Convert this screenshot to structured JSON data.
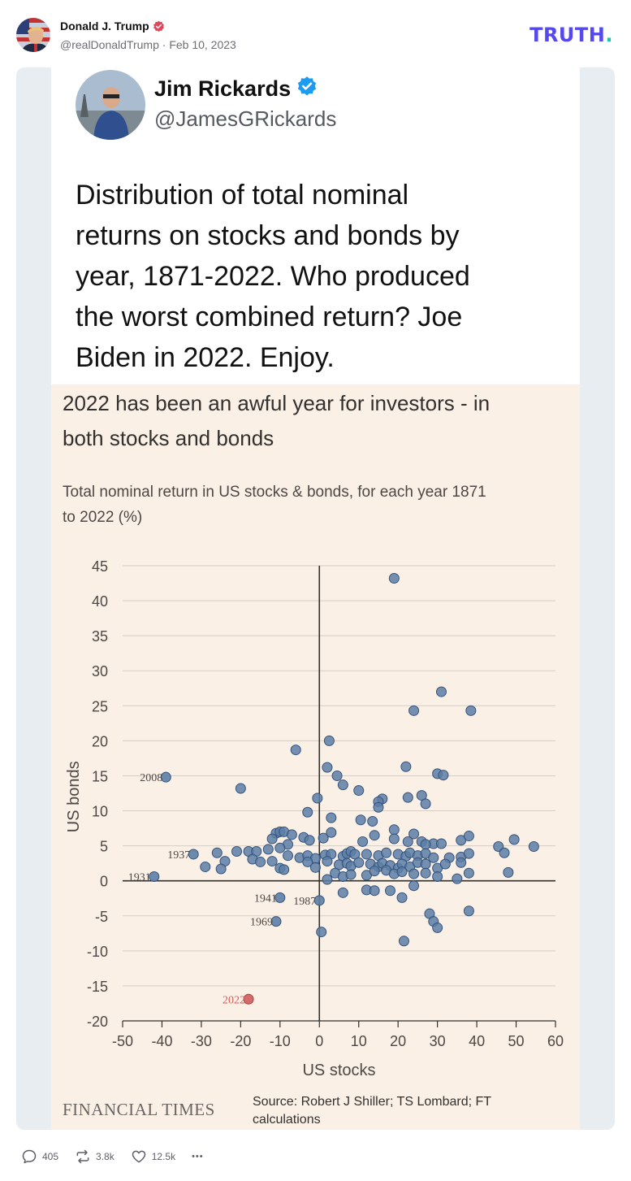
{
  "post": {
    "author_name": "Donald J. Trump",
    "handle": "@realDonaldTrump",
    "separator": "·",
    "date": "Feb 10, 2023",
    "logo": "TRUTH",
    "logo_dot": ".",
    "colors": {
      "logo": "#5448ee",
      "logo_dot": "#15c9a8",
      "verified": "#e3465a"
    }
  },
  "tweet": {
    "name": "Jim Rickards",
    "handle": "@JamesGRickards",
    "text_lines": [
      "Distribution of total nominal",
      "returns on stocks and bonds by",
      "year, 1871-2022. Who produced",
      "the worst combined return? Joe",
      "Biden in 2022. Enjoy."
    ],
    "colors": {
      "verified": "#1d9bf0"
    }
  },
  "ft": {
    "headline_lines": [
      "2022 has been an awful year for investors - in",
      "both stocks and bonds"
    ],
    "subtitle_lines": [
      "Total nominal return in US stocks & bonds, for each year 1871",
      "to 2022 (%)"
    ],
    "logo": "FINANCIAL TIMES",
    "source_lines": [
      "Source: Robert J Shiller; TS Lombard; FT",
      "calculations"
    ]
  },
  "actions": {
    "replies": "405",
    "retruths": "3.8k",
    "likes": "12.5k",
    "more": "•••"
  },
  "chart_data": {
    "type": "scatter",
    "title": "Total nominal return in US stocks & bonds, for each year 1871 to 2022 (%)",
    "xlabel": "US stocks",
    "ylabel": "US bonds",
    "xlim": [
      -50,
      60
    ],
    "ylim": [
      -20,
      45
    ],
    "xticks": [
      -50,
      -40,
      -30,
      -20,
      -10,
      0,
      10,
      20,
      30,
      40,
      50,
      60
    ],
    "yticks": [
      -20,
      -15,
      -10,
      -5,
      0,
      5,
      10,
      15,
      20,
      25,
      30,
      35,
      40,
      45
    ],
    "grid": "horizontal",
    "colors": {
      "point": "#5c7ea6",
      "point_edge": "#34537c",
      "highlight": "#cf5c5c",
      "zero_line": "#33302e"
    },
    "labeled_points": [
      {
        "label": "2008",
        "x": -39,
        "y": 14.8
      },
      {
        "label": "1937",
        "x": -32,
        "y": 3.8
      },
      {
        "label": "1931",
        "x": -42,
        "y": 0.6
      },
      {
        "label": "1941",
        "x": -10,
        "y": -2.4
      },
      {
        "label": "1987",
        "x": 0,
        "y": -2.8
      },
      {
        "label": "1969",
        "x": -11,
        "y": -5.8
      },
      {
        "label": "2022",
        "x": -18,
        "y": -16.9,
        "highlight": true
      }
    ],
    "points": [
      [
        19,
        43.2
      ],
      [
        31,
        27
      ],
      [
        24,
        24.3
      ],
      [
        38.5,
        24.3
      ],
      [
        2.5,
        20
      ],
      [
        -6,
        18.7
      ],
      [
        22,
        16.3
      ],
      [
        2,
        16.2
      ],
      [
        30,
        15.3
      ],
      [
        31.5,
        15.1
      ],
      [
        4.5,
        15
      ],
      [
        -20,
        13.2
      ],
      [
        6,
        13.7
      ],
      [
        10,
        12.9
      ],
      [
        26,
        12.2
      ],
      [
        16,
        11.7
      ],
      [
        15,
        11.3
      ],
      [
        22.5,
        11.9
      ],
      [
        -0.5,
        11.8
      ],
      [
        27,
        11
      ],
      [
        15,
        10.5
      ],
      [
        -3,
        9.8
      ],
      [
        3,
        9
      ],
      [
        10.5,
        8.7
      ],
      [
        13.5,
        8.5
      ],
      [
        19,
        7.3
      ],
      [
        24,
        6.7
      ],
      [
        3,
        6.9
      ],
      [
        14,
        6.5
      ],
      [
        -11,
        6.8
      ],
      [
        -10,
        7
      ],
      [
        -9,
        7
      ],
      [
        -7,
        6.6
      ],
      [
        -4,
        6.2
      ],
      [
        -12,
        6
      ],
      [
        1,
        6.1
      ],
      [
        -2.5,
        5.8
      ],
      [
        11,
        5.6
      ],
      [
        19,
        6
      ],
      [
        29,
        5.3
      ],
      [
        36,
        5.8
      ],
      [
        38,
        6.4
      ],
      [
        49.5,
        5.9
      ],
      [
        22.5,
        5.6
      ],
      [
        26,
        5.6
      ],
      [
        27,
        5.2
      ],
      [
        31,
        5.3
      ],
      [
        45.5,
        4.9
      ],
      [
        -8,
        5.2
      ],
      [
        -10,
        4.7
      ],
      [
        -13,
        4.5
      ],
      [
        -18,
        4.2
      ],
      [
        -16,
        4.2
      ],
      [
        -26,
        4
      ],
      [
        -21,
        4.2
      ],
      [
        -8,
        3.6
      ],
      [
        -5,
        3.3
      ],
      [
        -3,
        3.6
      ],
      [
        -1,
        3.2
      ],
      [
        1.5,
        3.7
      ],
      [
        3,
        3.8
      ],
      [
        6,
        3.5
      ],
      [
        7,
        3.9
      ],
      [
        8,
        4.2
      ],
      [
        9,
        3.8
      ],
      [
        12,
        3.8
      ],
      [
        15,
        3.6
      ],
      [
        17,
        4
      ],
      [
        20,
        3.8
      ],
      [
        22,
        3.5
      ],
      [
        23,
        4
      ],
      [
        25,
        3.6
      ],
      [
        27,
        3.9
      ],
      [
        29,
        3.3
      ],
      [
        33,
        3.3
      ],
      [
        36,
        3.4
      ],
      [
        38,
        3.9
      ],
      [
        47,
        4
      ],
      [
        54.5,
        4.9
      ],
      [
        -24,
        2.8
      ],
      [
        -17,
        3.1
      ],
      [
        -15,
        2.7
      ],
      [
        -12,
        2.8
      ],
      [
        -3,
        2.7
      ],
      [
        2,
        2.8
      ],
      [
        5,
        2.3
      ],
      [
        7,
        2.5
      ],
      [
        8,
        2.1
      ],
      [
        10,
        2.6
      ],
      [
        13,
        2.4
      ],
      [
        15,
        2
      ],
      [
        16,
        2.5
      ],
      [
        18,
        2.2
      ],
      [
        20,
        1.8
      ],
      [
        21,
        2.4
      ],
      [
        23,
        2
      ],
      [
        25,
        2.6
      ],
      [
        27,
        2.4
      ],
      [
        30,
        1.8
      ],
      [
        32,
        2.4
      ],
      [
        36,
        2.6
      ],
      [
        -29,
        2
      ],
      [
        -25,
        1.7
      ],
      [
        -10,
        1.8
      ],
      [
        -9,
        1.6
      ],
      [
        -1,
        1.9
      ],
      [
        4,
        1.1
      ],
      [
        6,
        0.6
      ],
      [
        8,
        0.9
      ],
      [
        12,
        0.8
      ],
      [
        14,
        1.4
      ],
      [
        17,
        1.5
      ],
      [
        19,
        1
      ],
      [
        21,
        1.3
      ],
      [
        24,
        1
      ],
      [
        27,
        1.1
      ],
      [
        30,
        0.6
      ],
      [
        35,
        0.3
      ],
      [
        38,
        1.1
      ],
      [
        48,
        1.2
      ],
      [
        2,
        0.2
      ],
      [
        24,
        -0.7
      ],
      [
        6,
        -1.7
      ],
      [
        12,
        -1.3
      ],
      [
        14,
        -1.4
      ],
      [
        18,
        -1.4
      ],
      [
        21,
        -2.4
      ],
      [
        28,
        -4.7
      ],
      [
        29,
        -5.8
      ],
      [
        30,
        -6.7
      ],
      [
        38,
        -4.3
      ],
      [
        0.5,
        -7.3
      ],
      [
        21.5,
        -8.6
      ]
    ]
  }
}
